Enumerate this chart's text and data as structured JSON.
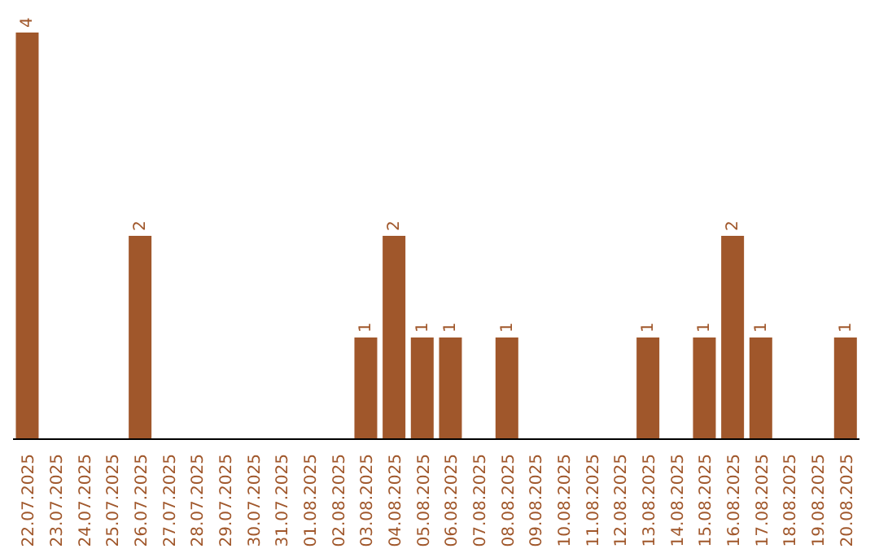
{
  "chart_data": {
    "type": "bar",
    "categories": [
      "22.07.2025",
      "23.07.2025",
      "24.07.2025",
      "25.07.2025",
      "26.07.2025",
      "27.07.2025",
      "28.07.2025",
      "29.07.2025",
      "30.07.2025",
      "31.07.2025",
      "01.08.2025",
      "02.08.2025",
      "03.08.2025",
      "04.08.2025",
      "05.08.2025",
      "06.08.2025",
      "07.08.2025",
      "08.08.2025",
      "09.08.2025",
      "10.08.2025",
      "11.08.2025",
      "12.08.2025",
      "13.08.2025",
      "14.08.2025",
      "15.08.2025",
      "16.08.2025",
      "17.08.2025",
      "18.08.2025",
      "19.08.2025",
      "20.08.2025"
    ],
    "values": [
      4,
      0,
      0,
      0,
      2,
      0,
      0,
      0,
      0,
      0,
      0,
      0,
      1,
      2,
      1,
      1,
      0,
      1,
      0,
      0,
      0,
      0,
      1,
      0,
      1,
      2,
      1,
      0,
      0,
      1
    ],
    "value_labels": [
      "4",
      null,
      null,
      null,
      "2",
      null,
      null,
      null,
      null,
      null,
      null,
      null,
      "1",
      "2",
      "1",
      "1",
      null,
      "1",
      null,
      null,
      null,
      null,
      "1",
      null,
      "1",
      "2",
      "1",
      null,
      null,
      "1"
    ],
    "color": "#a0572b",
    "grid": false
  }
}
